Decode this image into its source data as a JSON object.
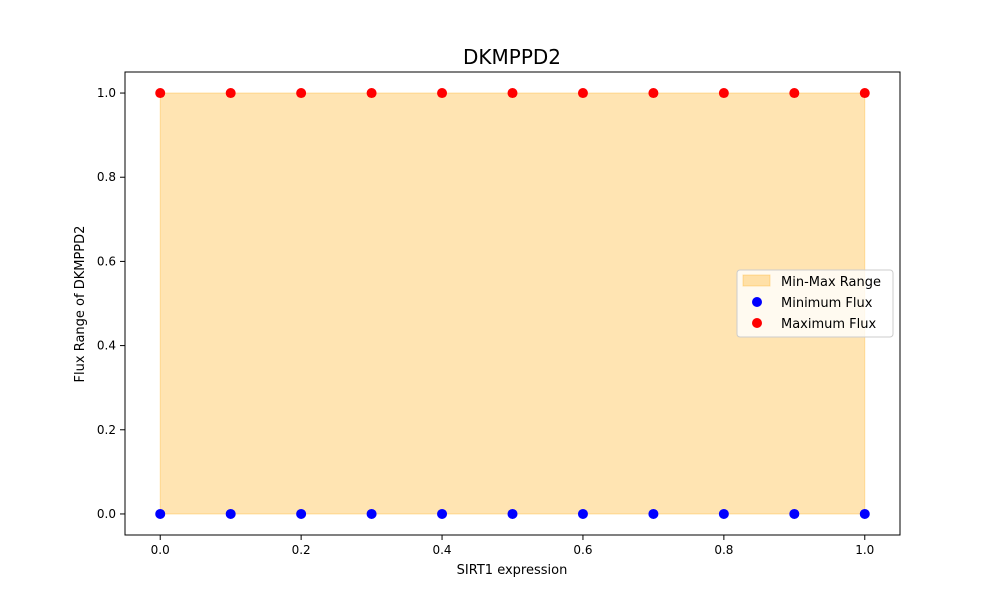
{
  "chart_data": {
    "type": "scatter",
    "title": "DKMPPD2",
    "xlabel": "SIRT1 expression",
    "ylabel": "Flux Range of DKMPPD2",
    "xlim": [
      -0.05,
      1.05
    ],
    "ylim": [
      -0.05,
      1.05
    ],
    "xticks": [
      0.0,
      0.2,
      0.4,
      0.6,
      0.8,
      1.0
    ],
    "yticks": [
      0.0,
      0.2,
      0.4,
      0.6,
      0.8,
      1.0
    ],
    "xtick_labels": [
      "0.0",
      "0.2",
      "0.4",
      "0.6",
      "0.8",
      "1.0"
    ],
    "ytick_labels": [
      "0.0",
      "0.2",
      "0.4",
      "0.6",
      "0.8",
      "1.0"
    ],
    "x": [
      0.0,
      0.1,
      0.2,
      0.3,
      0.4,
      0.5,
      0.6,
      0.7,
      0.8,
      0.9,
      1.0
    ],
    "fill_between": {
      "name": "Min-Max Range",
      "lower": [
        0,
        0,
        0,
        0,
        0,
        0,
        0,
        0,
        0,
        0,
        0
      ],
      "upper": [
        1,
        1,
        1,
        1,
        1,
        1,
        1,
        1,
        1,
        1,
        1
      ],
      "color": "#ffa500"
    },
    "series": [
      {
        "name": "Minimum Flux",
        "color": "#0000ff",
        "values": [
          0,
          0,
          0,
          0,
          0,
          0,
          0,
          0,
          0,
          0,
          0
        ]
      },
      {
        "name": "Maximum Flux",
        "color": "#ff0000",
        "values": [
          1,
          1,
          1,
          1,
          1,
          1,
          1,
          1,
          1,
          1,
          1
        ]
      }
    ],
    "legend": {
      "position": "center-right",
      "entries": [
        "Min-Max Range",
        "Minimum Flux",
        "Maximum Flux"
      ]
    },
    "grid": false
  }
}
